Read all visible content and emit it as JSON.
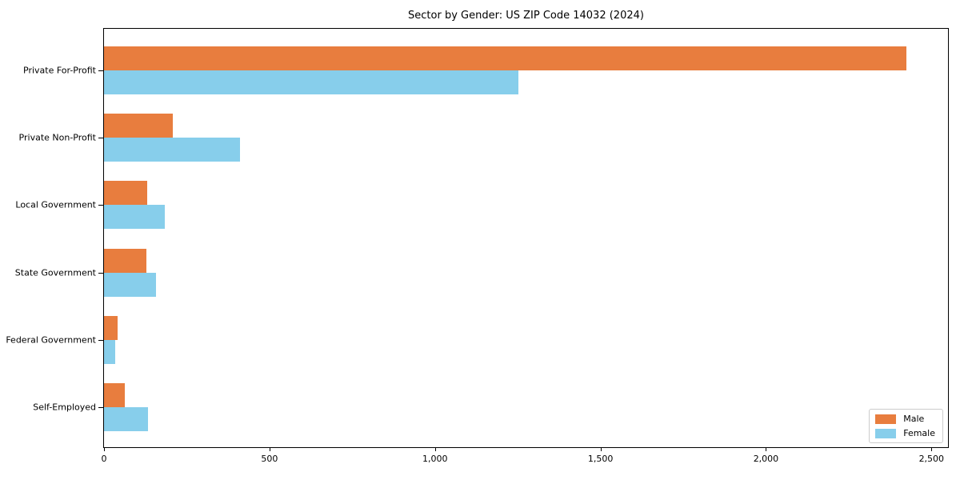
{
  "chart_data": {
    "type": "bar",
    "orientation": "horizontal",
    "title": "Sector by Gender: US ZIP Code 14032 (2024)",
    "categories": [
      "Private For-Profit",
      "Private Non-Profit",
      "Local Government",
      "State Government",
      "Federal Government",
      "Self-Employed"
    ],
    "series": [
      {
        "name": "Male",
        "color": "#e87d3e",
        "values": [
          2425,
          207,
          131,
          127,
          41,
          63
        ]
      },
      {
        "name": "Female",
        "color": "#87ceeb",
        "values": [
          1252,
          410,
          184,
          157,
          34,
          134
        ]
      }
    ],
    "xlabel": "",
    "ylabel": "",
    "xlim": [
      0,
      2550
    ],
    "x_ticks": [
      0,
      500,
      1000,
      1500,
      2000,
      2500
    ],
    "x_tick_labels": [
      "0",
      "500",
      "1,000",
      "1,500",
      "2,000",
      "2,500"
    ],
    "legend_position": "lower right",
    "grid": false,
    "background_color": "#ffffff",
    "axis_color": "#000000",
    "legend_border_color": "#cccccc"
  }
}
